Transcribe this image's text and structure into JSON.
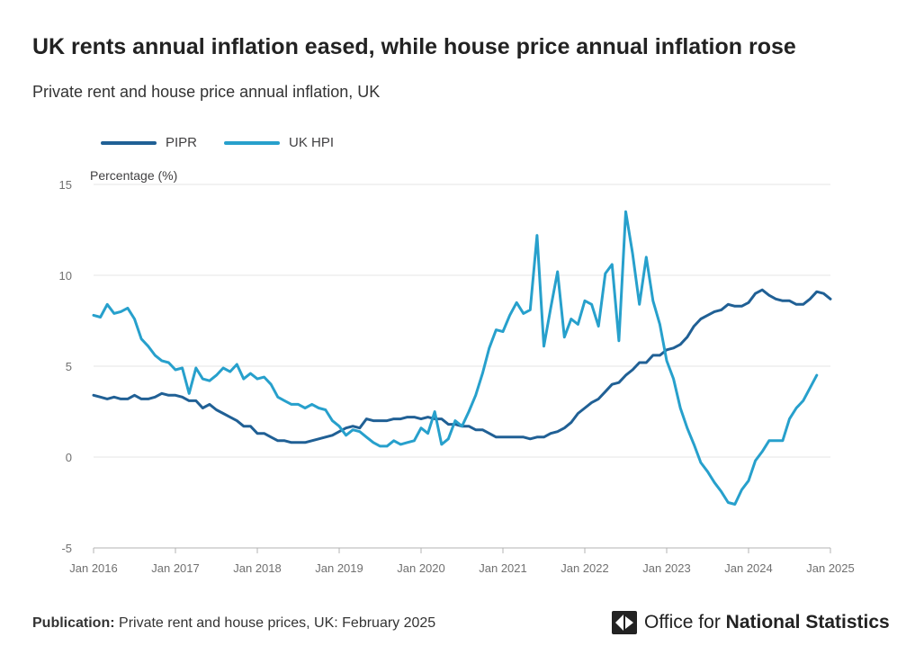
{
  "title": "UK rents annual inflation eased, while house price annual inflation rose",
  "subtitle": "Private rent and house price annual inflation, UK",
  "footer": {
    "publication_label": "Publication:",
    "publication_text": "Private rent and house prices, UK: February 2025"
  },
  "logo": {
    "icon": "ons-logo-icon",
    "text_regular": "Office for",
    "text_bold": "National Statistics"
  },
  "colors": {
    "PIPR": "#206095",
    "UK HPI": "#27a0cc",
    "gridline": "#e5e5e5",
    "axis": "#b3b3b3",
    "tick_text": "#707070"
  },
  "chart_data": {
    "type": "line",
    "ylabel": "Percentage (%)",
    "xlabel": "",
    "ylim": [
      -5,
      15
    ],
    "yticks": [
      -5,
      0,
      5,
      10,
      15
    ],
    "xlim": [
      "Jan 2016",
      "Jan 2025"
    ],
    "xticks": [
      "Jan 2016",
      "Jan 2017",
      "Jan 2018",
      "Jan 2019",
      "Jan 2020",
      "Jan 2021",
      "Jan 2022",
      "Jan 2023",
      "Jan 2024",
      "Jan 2025"
    ],
    "grid": true,
    "legend_position": "top-left",
    "x_start": "Jan 2016",
    "x_interval": "monthly",
    "series": [
      {
        "name": "PIPR",
        "values": [
          3.4,
          3.3,
          3.2,
          3.3,
          3.2,
          3.2,
          3.4,
          3.2,
          3.2,
          3.3,
          3.5,
          3.4,
          3.4,
          3.3,
          3.1,
          3.1,
          2.7,
          2.9,
          2.6,
          2.4,
          2.2,
          2.0,
          1.7,
          1.7,
          1.3,
          1.3,
          1.1,
          0.9,
          0.9,
          0.8,
          0.8,
          0.8,
          0.9,
          1.0,
          1.1,
          1.2,
          1.4,
          1.6,
          1.7,
          1.6,
          2.1,
          2.0,
          2.0,
          2.0,
          2.1,
          2.1,
          2.2,
          2.2,
          2.1,
          2.2,
          2.1,
          2.1,
          1.8,
          1.8,
          1.7,
          1.7,
          1.5,
          1.5,
          1.3,
          1.1,
          1.1,
          1.1,
          1.1,
          1.1,
          1.0,
          1.1,
          1.1,
          1.3,
          1.4,
          1.6,
          1.9,
          2.4,
          2.7,
          3.0,
          3.2,
          3.6,
          4.0,
          4.1,
          4.5,
          4.8,
          5.2,
          5.2,
          5.6,
          5.6,
          5.9,
          6.0,
          6.2,
          6.6,
          7.2,
          7.6,
          7.8,
          8.0,
          8.1,
          8.4,
          8.3,
          8.3,
          8.5,
          9.0,
          9.2,
          8.9,
          8.7,
          8.6,
          8.6,
          8.4,
          8.4,
          8.7,
          9.1,
          9.0,
          8.7
        ]
      },
      {
        "name": "UK HPI",
        "values": [
          7.8,
          7.7,
          8.4,
          7.9,
          8.0,
          8.2,
          7.6,
          6.5,
          6.1,
          5.6,
          5.3,
          5.2,
          4.8,
          4.9,
          3.5,
          4.9,
          4.3,
          4.2,
          4.5,
          4.9,
          4.7,
          5.1,
          4.3,
          4.6,
          4.3,
          4.4,
          4.0,
          3.3,
          3.1,
          2.9,
          2.9,
          2.7,
          2.9,
          2.7,
          2.6,
          2.0,
          1.7,
          1.2,
          1.5,
          1.4,
          1.1,
          0.8,
          0.6,
          0.6,
          0.9,
          0.7,
          0.8,
          0.9,
          1.6,
          1.3,
          2.5,
          0.7,
          1.0,
          2.0,
          1.7,
          2.5,
          3.4,
          4.6,
          6.0,
          7.0,
          6.9,
          7.8,
          8.5,
          7.9,
          8.1,
          12.2,
          6.1,
          8.2,
          10.2,
          6.6,
          7.6,
          7.3,
          8.6,
          8.4,
          7.2,
          10.1,
          10.6,
          6.4,
          13.5,
          11.2,
          8.4,
          11.0,
          8.6,
          7.3,
          5.3,
          4.3,
          2.7,
          1.6,
          0.7,
          -0.3,
          -0.8,
          -1.4,
          -1.9,
          -2.5,
          -2.6,
          -1.8,
          -1.3,
          -0.2,
          0.3,
          0.9,
          0.9,
          0.9,
          2.1,
          2.7,
          3.1,
          3.8,
          4.5
        ]
      }
    ]
  }
}
